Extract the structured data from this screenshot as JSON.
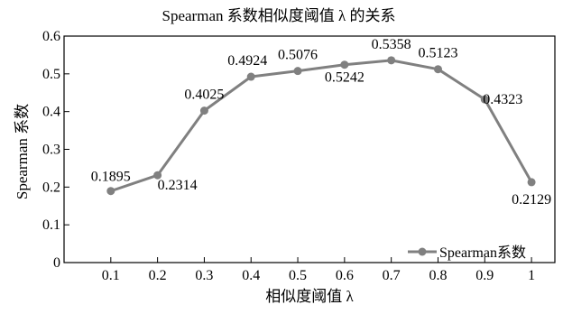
{
  "chart_data": {
    "type": "line",
    "title": "Spearman 系数相似度阈值 λ 的关系",
    "xlabel": "相似度阈值 λ",
    "ylabel": "Spearman 系数",
    "x": [
      0.1,
      0.2,
      0.3,
      0.4,
      0.5,
      0.6,
      0.7,
      0.8,
      0.9,
      1
    ],
    "x_tick_labels": [
      "0.1",
      "0.2",
      "0.3",
      "0.4",
      "0.5",
      "0.6",
      "0.7",
      "0.8",
      "0.9",
      "1"
    ],
    "xlim": [
      0,
      1.05
    ],
    "ylim": [
      0,
      0.6
    ],
    "y_ticks": [
      0,
      0.1,
      0.2,
      0.3,
      0.4,
      0.5,
      0.6
    ],
    "y_tick_labels": [
      "0",
      "0.1",
      "0.2",
      "0.3",
      "0.4",
      "0.5",
      "0.6"
    ],
    "series": [
      {
        "name": "Spearman系数",
        "color": "#808080",
        "values": [
          0.1895,
          0.2314,
          0.4025,
          0.4924,
          0.5076,
          0.5242,
          0.5358,
          0.5123,
          0.4323,
          0.2129
        ],
        "value_labels": [
          "0.1895",
          "0.2314",
          "0.4025",
          "0.4924",
          "0.5076",
          "0.5242",
          "0.5358",
          "0.5123",
          "0.4323",
          "0.2129"
        ]
      }
    ],
    "grid": false,
    "legend_position": "bottom-right"
  }
}
